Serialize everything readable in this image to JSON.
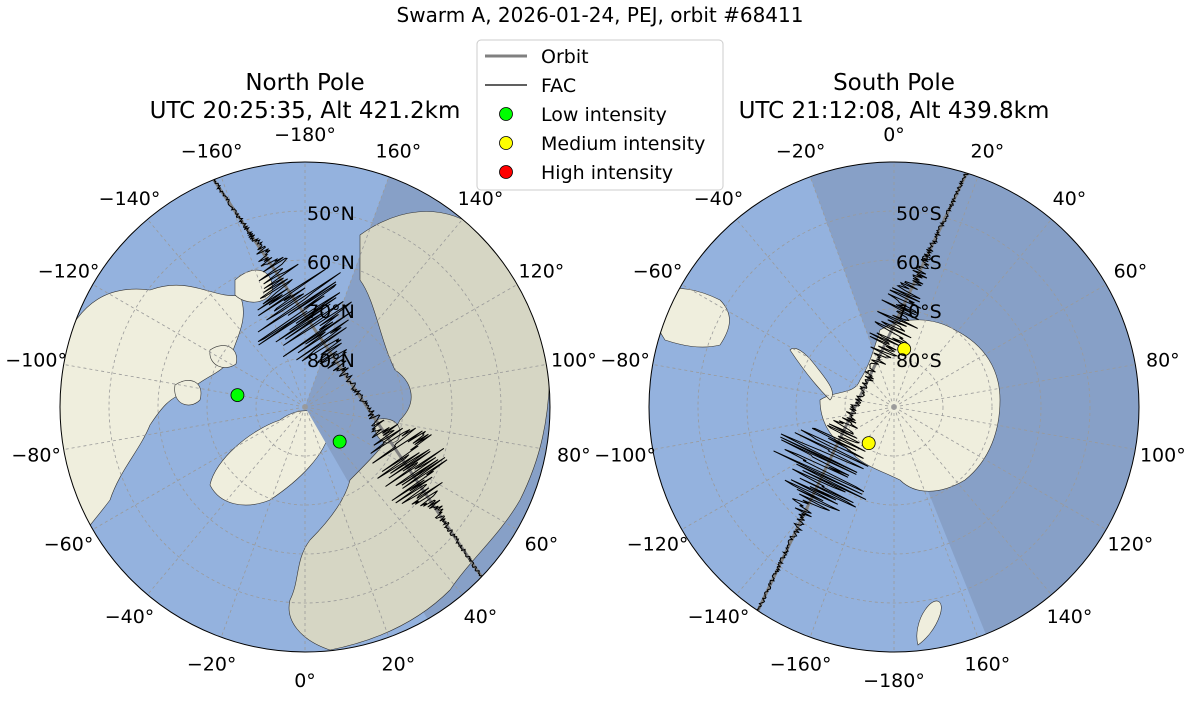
{
  "figure_title": "Swarm A, 2026-01-24, PEJ, orbit #68411",
  "legend": {
    "items": [
      {
        "label": "Orbit",
        "kind": "line",
        "color": "#808080"
      },
      {
        "label": "FAC",
        "kind": "line",
        "color": "#000000"
      },
      {
        "label": "Low intensity",
        "kind": "marker",
        "color": "#00ff00"
      },
      {
        "label": "Medium intensity",
        "kind": "marker",
        "color": "#ffff00"
      },
      {
        "label": "High intensity",
        "kind": "marker",
        "color": "#ff0000"
      }
    ]
  },
  "colors": {
    "ocean": "#94b2de",
    "ocean_night": "#87a0c7",
    "land": "#efeedd",
    "land_night": "#d6d6c4",
    "grid": "#9a9a9a",
    "fac": "#000000",
    "orbit": "#808080"
  },
  "north": {
    "title_line1": "North Pole",
    "title_line2": "UTC 20:25:35, Alt 421.2km",
    "lon_labels": [
      "−180°",
      "160°",
      "140°",
      "120°",
      "100°",
      "80°",
      "60°",
      "40°",
      "20°",
      "0°",
      "−20°",
      "−40°",
      "−60°",
      "−80°",
      "−100°",
      "−120°",
      "−140°",
      "−160°"
    ],
    "lat_labels": [
      "50°N",
      "60°N",
      "70°N",
      "80°N"
    ],
    "events": [
      {
        "lat": 76,
        "lon": -100,
        "intensity": "low"
      },
      {
        "lat": 80,
        "lon": 45,
        "intensity": "low"
      }
    ]
  },
  "south": {
    "title_line1": "South Pole",
    "title_line2": "UTC 21:12:08, Alt 439.8km",
    "lon_labels": [
      "0°",
      "20°",
      "40°",
      "60°",
      "80°",
      "100°",
      "120°",
      "140°",
      "160°",
      "−180°",
      "−160°",
      "−140°",
      "−120°",
      "−100°",
      "−80°",
      "−60°",
      "−40°",
      "−20°"
    ],
    "lat_labels": [
      "50°S",
      "60°S",
      "70°S",
      "80°S"
    ],
    "events": [
      {
        "lat": -78,
        "lon": 10,
        "intensity": "medium"
      },
      {
        "lat": -81,
        "lon": -145,
        "intensity": "medium"
      }
    ]
  }
}
